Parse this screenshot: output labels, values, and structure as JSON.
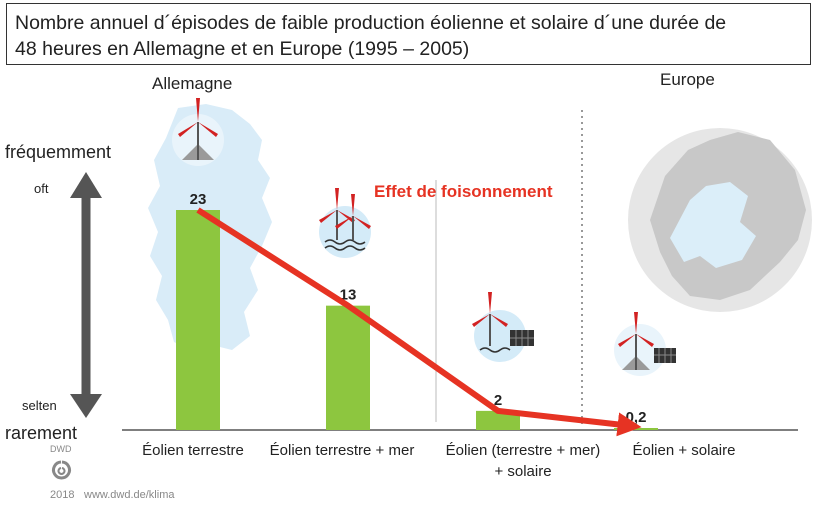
{
  "title_line1": "Nombre annuel d´épisodes de faible production éolienne et solaire d´une durée de",
  "title_line2": "48 heures en Allemagne et en Europe (1995 – 2005)",
  "region_left": "Allemagne",
  "region_right": "Europe",
  "axis": {
    "frequent_fr": "fréquemment",
    "frequent_de": "oft",
    "rare_de": "selten",
    "rare_fr": "rarement"
  },
  "effect_label": "Effet de foisonnement",
  "colors": {
    "bar": "#8dc63f",
    "arrow": "#e63323",
    "axis_arrow": "#555555"
  },
  "footer": {
    "logo_text": "DWD",
    "year": "2018",
    "url": "www.dwd.de/klima"
  },
  "chart_data": {
    "type": "bar",
    "categories": [
      [
        "Éolien terrestre"
      ],
      [
        "Éolien terrestre  + mer"
      ],
      [
        "Éolien (terrestre  + mer)",
        "+ solaire"
      ],
      [
        "Éolien + solaire"
      ]
    ],
    "values": [
      23,
      13,
      2,
      0.2
    ],
    "value_labels": [
      "23",
      "13",
      "2",
      "0,2"
    ],
    "ylim": [
      0,
      23
    ],
    "grid": false,
    "trend_line": true
  }
}
